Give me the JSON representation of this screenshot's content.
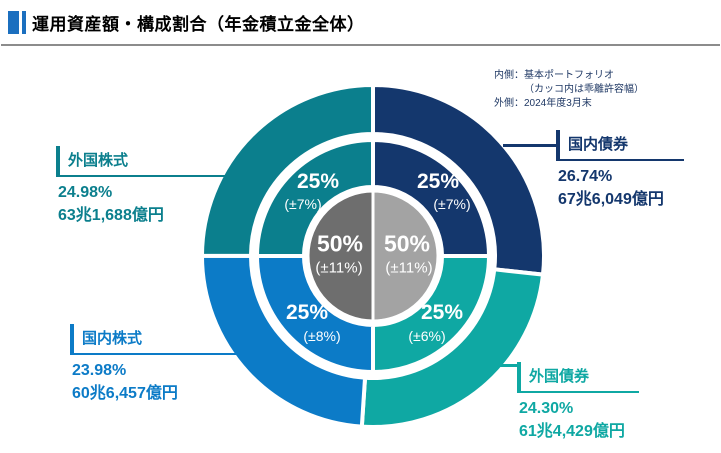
{
  "header": {
    "title": "運用資産額・構成割合（年金積立金全体）"
  },
  "legend_note": {
    "line1": "内側：基本ポートフォリオ",
    "line2": "（カッコ内は乖離許容幅）",
    "line3": "外側：2024年度3月末"
  },
  "chart_data": {
    "type": "pie",
    "subtype": "double-ring-donut",
    "title": "運用資産額・構成割合（年金積立金全体）",
    "inner_ring_meaning": "基本ポートフォリオ（カッコ内は乖離許容幅）",
    "outer_ring_meaning": "2024年度3月末の実際の構成割合",
    "order_clockwise_from_top": [
      "国内債券",
      "外国債券",
      "国内株式",
      "外国株式"
    ],
    "series": [
      {
        "name": "国内債券",
        "actual_pct": 26.74,
        "actual_label": "26.74%",
        "amount": "67兆6,049億円",
        "policy_pct": 25,
        "policy_label": "25%",
        "tolerance_label": "(±7%)",
        "color": "#14376d"
      },
      {
        "name": "外国債券",
        "actual_pct": 24.3,
        "actual_label": "24.30%",
        "amount": "61兆4,429億円",
        "policy_pct": 25,
        "policy_label": "25%",
        "tolerance_label": "(±6%)",
        "color": "#0fa8a3"
      },
      {
        "name": "国内株式",
        "actual_pct": 23.98,
        "actual_label": "23.98%",
        "amount": "60兆6,457億円",
        "policy_pct": 25,
        "policy_label": "25%",
        "tolerance_label": "(±8%)",
        "color": "#0c7bc7"
      },
      {
        "name": "外国株式",
        "actual_pct": 24.98,
        "actual_label": "24.98%",
        "amount": "63兆1,688億円",
        "policy_pct": 25,
        "policy_label": "25%",
        "tolerance_label": "(±7%)",
        "color": "#0b7f8d"
      }
    ],
    "center": {
      "left": {
        "value_label": "50%",
        "tolerance_label": "(±11%)",
        "color": "#6e6e6e"
      },
      "right": {
        "value_label": "50%",
        "tolerance_label": "(±11%)",
        "color": "#a3a3a3"
      }
    }
  },
  "colors": {
    "accent_bar": "#1b6fbf",
    "title_rule": "#8c8c8c",
    "note_text": "#1f3864"
  }
}
